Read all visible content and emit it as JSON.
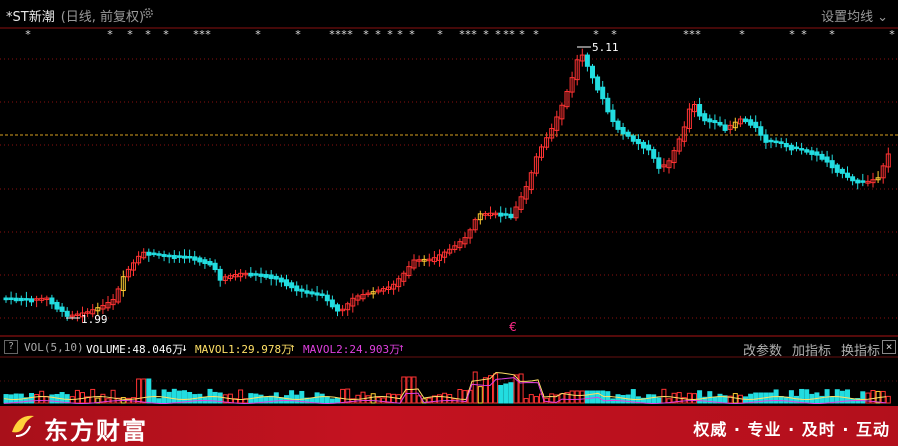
{
  "header": {
    "stock_name": "*ST新潮",
    "subtitle": "(日线, 前复权)",
    "ma_settings_label": "设置均线",
    "ma_settings_arrow": "⌄"
  },
  "price_chart": {
    "high_marker": "5.11",
    "low_marker": "1.99",
    "pink_marker": "€",
    "colors": {
      "up": "#ff3333",
      "down": "#22dde0",
      "special_down": "#3355ff",
      "special_up": "#ffcc33",
      "ref_line": "#d8a020",
      "grid": "#8a1010"
    }
  },
  "volume_panel": {
    "help_label": "?",
    "vol_label": "VOL(5,10)",
    "volume_text": "VOLUME:48.046万",
    "volume_arrow": "↓",
    "mavol1_text": "MAVOL1:29.978万",
    "mavol1_arrow": "↑",
    "mavol2_text": "MAVOL2:24.903万",
    "mavol2_arrow": "↑",
    "buttons": {
      "params": "改参数",
      "add": "加指标",
      "switch": "换指标"
    },
    "close_label": "×",
    "colors": {
      "volume": "#ffffff",
      "mavol1": "#ffe066",
      "mavol2": "#e040e0"
    }
  },
  "footer": {
    "brand": "东方财富",
    "slogan": "权威 · 专业 · 及时 · 互动"
  }
}
